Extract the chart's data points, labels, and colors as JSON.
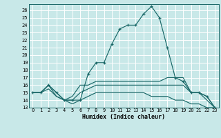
{
  "xlabel": "Humidex (Indice chaleur)",
  "xlim": [
    -0.5,
    23.5
  ],
  "ylim": [
    13,
    26.8
  ],
  "xticks": [
    0,
    1,
    2,
    3,
    4,
    5,
    6,
    7,
    8,
    9,
    10,
    11,
    12,
    13,
    14,
    15,
    16,
    17,
    18,
    19,
    20,
    21,
    22,
    23
  ],
  "yticks": [
    13,
    14,
    15,
    16,
    17,
    18,
    19,
    20,
    21,
    22,
    23,
    24,
    25,
    26
  ],
  "bg_color": "#c8e8e8",
  "line_color": "#1a6868",
  "grid_color": "#ffffff",
  "curves": [
    {
      "x": [
        0,
        1,
        2,
        3,
        4,
        5,
        6,
        7,
        8,
        9,
        10,
        11,
        12,
        13,
        14,
        15,
        16,
        17,
        18,
        19,
        20,
        21,
        22,
        23
      ],
      "y": [
        15,
        15,
        16,
        15,
        14,
        14,
        14,
        17.5,
        19,
        19,
        21.5,
        23.5,
        24,
        24,
        25.5,
        26.5,
        25,
        21,
        17,
        16.5,
        15,
        15,
        14.5,
        13
      ],
      "marker": "+"
    },
    {
      "x": [
        0,
        1,
        2,
        3,
        4,
        5,
        6,
        7,
        8,
        9,
        10,
        11,
        12,
        13,
        14,
        15,
        16,
        17,
        18,
        19,
        20,
        21,
        22,
        23
      ],
      "y": [
        15,
        15,
        16,
        14.5,
        14,
        14.5,
        16,
        16,
        16.5,
        16.5,
        16.5,
        16.5,
        16.5,
        16.5,
        16.5,
        16.5,
        16.5,
        17,
        17,
        17,
        15,
        15,
        14.5,
        13
      ],
      "marker": null
    },
    {
      "x": [
        0,
        1,
        2,
        3,
        4,
        5,
        6,
        7,
        8,
        9,
        10,
        11,
        12,
        13,
        14,
        15,
        16,
        17,
        18,
        19,
        20,
        21,
        22,
        23
      ],
      "y": [
        15,
        15,
        16,
        15,
        14,
        14,
        15,
        15.5,
        16,
        16,
        16,
        16,
        16,
        16,
        16,
        16,
        16,
        16,
        16,
        16,
        15,
        15,
        14,
        13
      ],
      "marker": null
    },
    {
      "x": [
        0,
        1,
        2,
        3,
        4,
        5,
        6,
        7,
        8,
        9,
        10,
        11,
        12,
        13,
        14,
        15,
        16,
        17,
        18,
        19,
        20,
        21,
        22,
        23
      ],
      "y": [
        15,
        15,
        15.5,
        14.5,
        14,
        13.5,
        14,
        14.5,
        15,
        15,
        15,
        15,
        15,
        15,
        15,
        14.5,
        14.5,
        14.5,
        14,
        14,
        13.5,
        13.5,
        13,
        13
      ],
      "marker": null
    }
  ]
}
